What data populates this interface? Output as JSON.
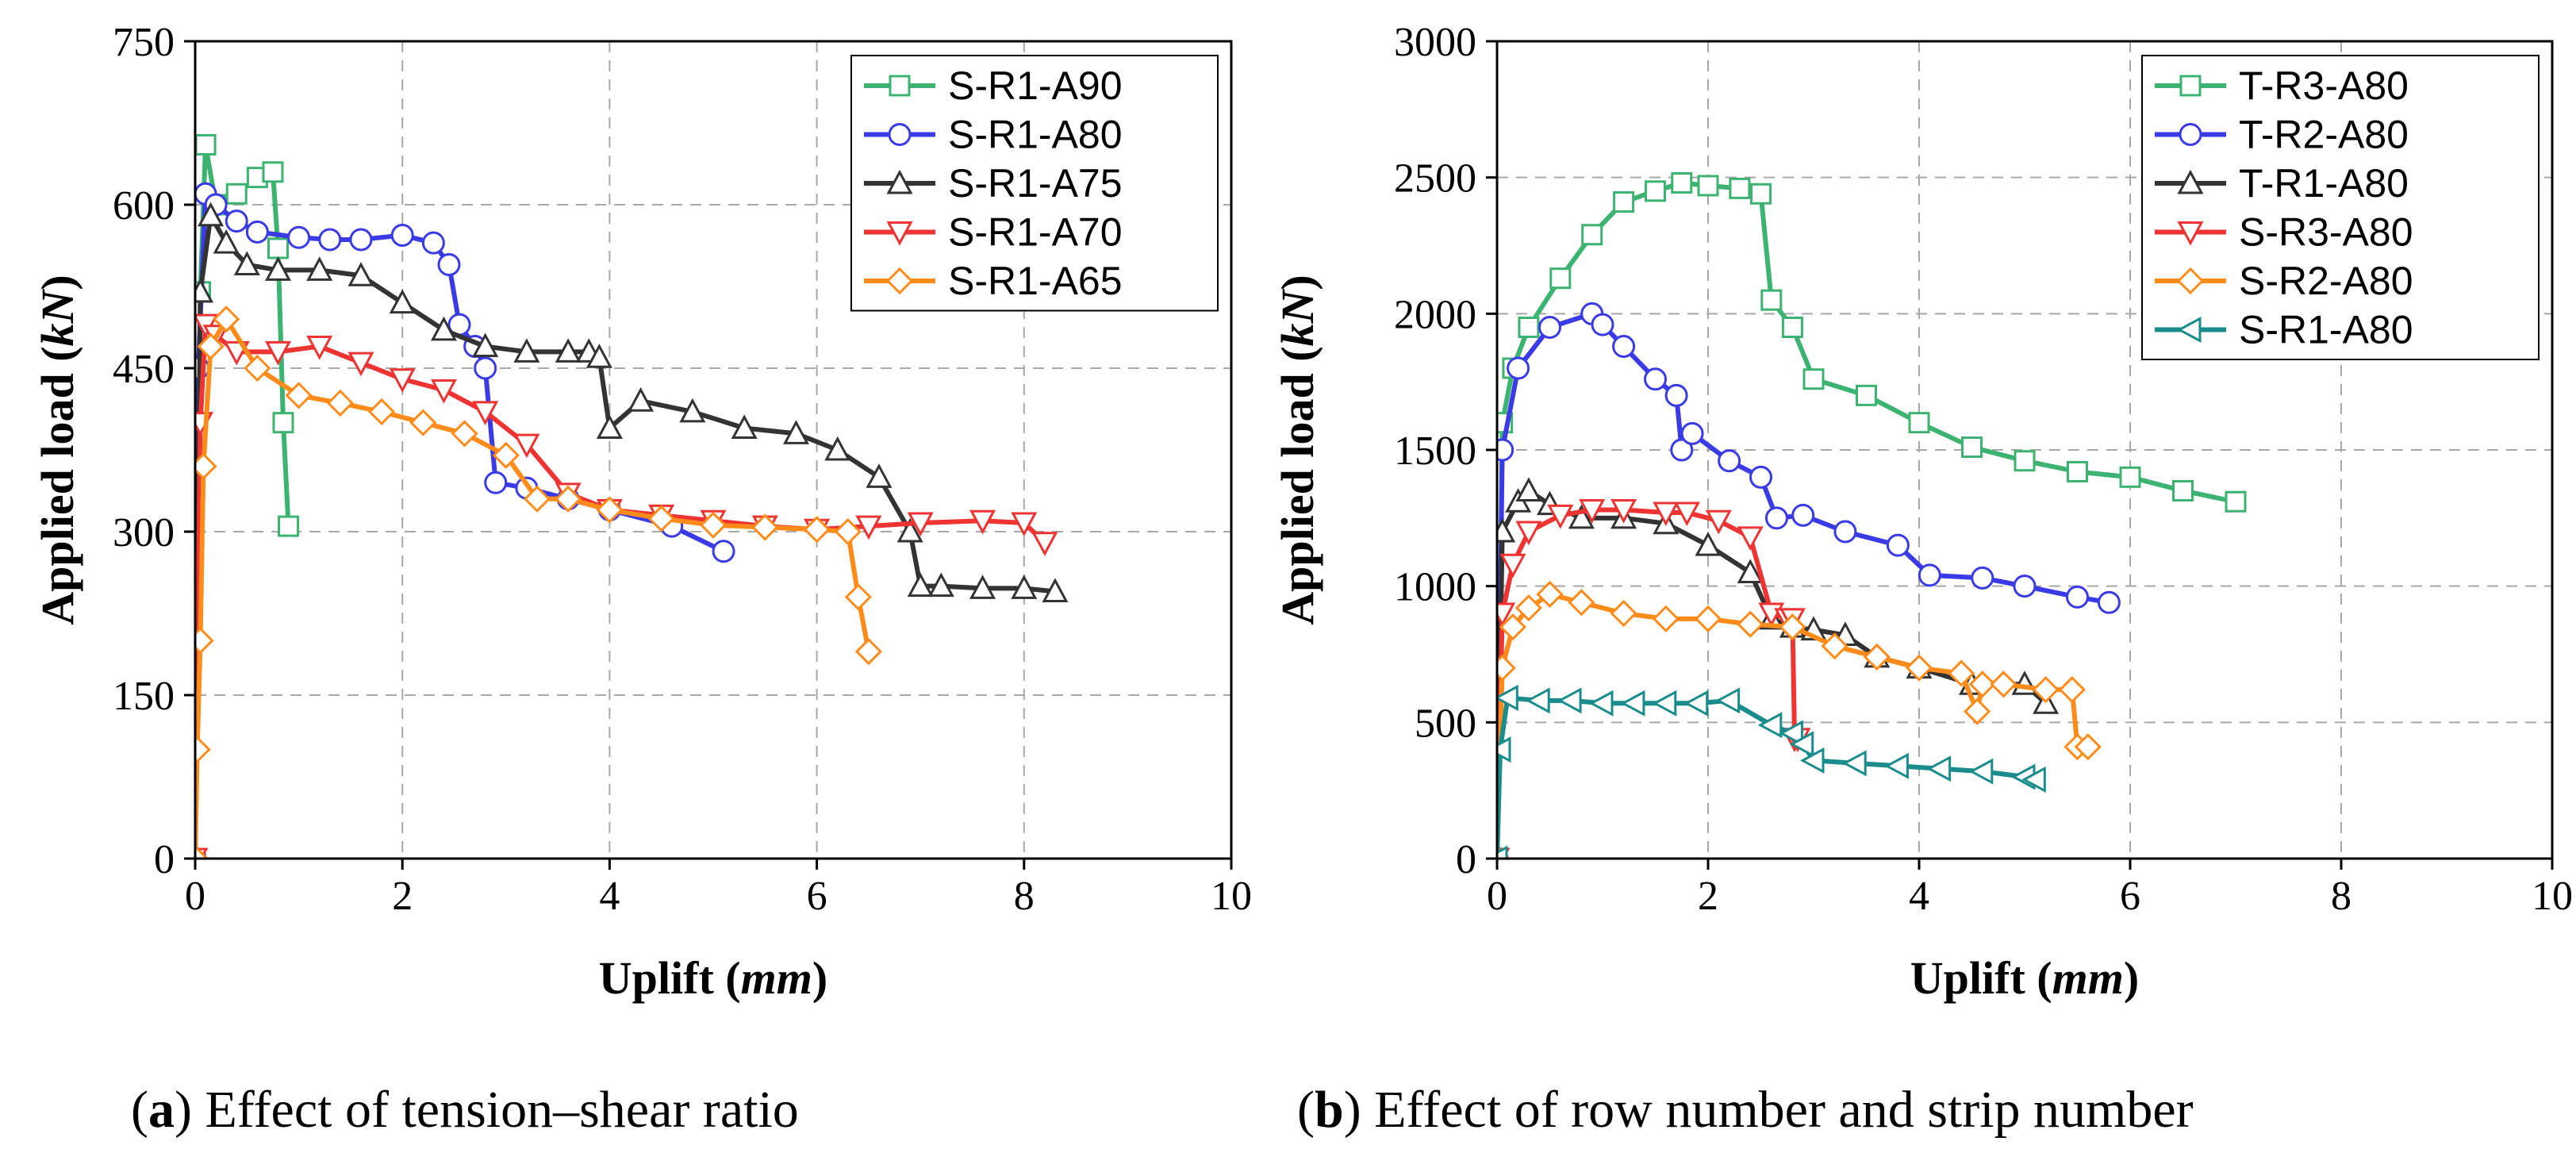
{
  "chart_data": [
    {
      "type": "line",
      "caption_letter": "a",
      "caption_text": "Effect of tension–shear ratio",
      "xlabel": "Uplift",
      "xlabel_unit": "mm",
      "ylabel": "Applied load",
      "ylabel_unit": "kN",
      "xlim": [
        0,
        10
      ],
      "ylim": [
        0,
        750
      ],
      "xticks": [
        0,
        2,
        4,
        6,
        8,
        10
      ],
      "yticks": [
        0,
        150,
        300,
        450,
        600,
        750
      ],
      "grid": true,
      "legend_position": "top-right",
      "series": [
        {
          "name": "S-R1-A90",
          "color": "#3cb371",
          "marker": "square",
          "x": [
            0,
            0.05,
            0.1,
            0.2,
            0.4,
            0.6,
            0.75,
            0.8,
            0.85,
            0.9
          ],
          "y": [
            0,
            520,
            655,
            600,
            610,
            625,
            630,
            560,
            400,
            305
          ]
        },
        {
          "name": "S-R1-A80",
          "color": "#3a3ae6",
          "marker": "circle",
          "x": [
            0,
            0.03,
            0.1,
            0.2,
            0.4,
            0.6,
            1.0,
            1.3,
            1.6,
            2.0,
            2.3,
            2.45,
            2.55,
            2.7,
            2.8,
            2.9,
            3.2,
            3.6,
            4.0,
            4.6,
            5.1
          ],
          "y": [
            0,
            450,
            610,
            600,
            585,
            575,
            570,
            568,
            568,
            572,
            565,
            545,
            490,
            470,
            450,
            345,
            340,
            330,
            320,
            305,
            282
          ]
        },
        {
          "name": "S-R1-A75",
          "color": "#333333",
          "marker": "triangle-up",
          "x": [
            0,
            0.05,
            0.15,
            0.3,
            0.5,
            0.8,
            1.2,
            1.6,
            2.0,
            2.4,
            2.8,
            3.2,
            3.6,
            3.8,
            3.9,
            4.0,
            4.3,
            4.8,
            5.3,
            5.8,
            6.2,
            6.6,
            6.9,
            7.0,
            7.2,
            7.6,
            8.0,
            8.3
          ],
          "y": [
            0,
            520,
            590,
            565,
            545,
            540,
            540,
            535,
            510,
            485,
            470,
            465,
            465,
            465,
            460,
            395,
            420,
            410,
            395,
            390,
            375,
            350,
            300,
            250,
            250,
            248,
            248,
            245
          ]
        },
        {
          "name": "S-R1-A70",
          "color": "#ee3333",
          "marker": "triangle-down",
          "x": [
            0,
            0.05,
            0.1,
            0.2,
            0.4,
            0.8,
            1.2,
            1.6,
            2.0,
            2.4,
            2.8,
            3.2,
            3.6,
            4.0,
            4.5,
            5.0,
            5.5,
            6.0,
            6.5,
            7.0,
            7.6,
            8.0,
            8.2
          ],
          "y": [
            0,
            400,
            490,
            480,
            465,
            465,
            470,
            455,
            440,
            430,
            410,
            380,
            335,
            320,
            315,
            310,
            305,
            302,
            305,
            308,
            310,
            308,
            290
          ]
        },
        {
          "name": "S-R1-A65",
          "color": "#ff8c1a",
          "marker": "diamond",
          "x": [
            0,
            0.02,
            0.05,
            0.08,
            0.15,
            0.3,
            0.6,
            1.0,
            1.4,
            1.8,
            2.2,
            2.6,
            3.0,
            3.3,
            3.6,
            4.0,
            4.5,
            5.0,
            5.5,
            6.0,
            6.3,
            6.4,
            6.5
          ],
          "y": [
            0,
            100,
            200,
            360,
            470,
            495,
            450,
            425,
            418,
            410,
            400,
            390,
            370,
            330,
            330,
            320,
            312,
            306,
            304,
            302,
            300,
            240,
            190
          ]
        }
      ]
    },
    {
      "type": "line",
      "caption_letter": "b",
      "caption_text": "Effect of row number and strip number",
      "xlabel": "Uplift",
      "xlabel_unit": "mm",
      "ylabel": "Applied load",
      "ylabel_unit": "kN",
      "xlim": [
        0,
        10
      ],
      "ylim": [
        0,
        3000
      ],
      "xticks": [
        0,
        2,
        4,
        6,
        8,
        10
      ],
      "yticks": [
        0,
        500,
        1000,
        1500,
        2000,
        2500,
        3000
      ],
      "grid": true,
      "legend_position": "top-right",
      "series": [
        {
          "name": "T-R3-A80",
          "color": "#3cb371",
          "marker": "square",
          "x": [
            0,
            0.05,
            0.15,
            0.3,
            0.6,
            0.9,
            1.2,
            1.5,
            1.75,
            2.0,
            2.3,
            2.5,
            2.6,
            2.8,
            3.0,
            3.5,
            4.0,
            4.5,
            5.0,
            5.5,
            6.0,
            6.5,
            7.0
          ],
          "y": [
            0,
            1600,
            1800,
            1950,
            2130,
            2290,
            2410,
            2450,
            2480,
            2470,
            2460,
            2440,
            2050,
            1950,
            1760,
            1700,
            1600,
            1510,
            1460,
            1420,
            1400,
            1350,
            1310
          ]
        },
        {
          "name": "T-R2-A80",
          "color": "#3a3ae6",
          "marker": "circle",
          "x": [
            0,
            0.05,
            0.2,
            0.5,
            0.9,
            1.0,
            1.2,
            1.5,
            1.7,
            1.75,
            1.85,
            2.2,
            2.5,
            2.65,
            2.9,
            3.3,
            3.8,
            4.1,
            4.6,
            5.0,
            5.5,
            5.8
          ],
          "y": [
            0,
            1500,
            1800,
            1950,
            2000,
            1960,
            1880,
            1760,
            1700,
            1500,
            1560,
            1460,
            1400,
            1250,
            1260,
            1200,
            1150,
            1040,
            1030,
            1000,
            960,
            940
          ]
        },
        {
          "name": "T-R1-A80",
          "color": "#333333",
          "marker": "triangle-up",
          "x": [
            0,
            0.05,
            0.2,
            0.3,
            0.5,
            0.8,
            1.2,
            1.6,
            2.0,
            2.4,
            2.6,
            2.8,
            3.0,
            3.3,
            3.6,
            4.0,
            4.5,
            5.0,
            5.2
          ],
          "y": [
            0,
            1200,
            1310,
            1350,
            1300,
            1250,
            1250,
            1230,
            1150,
            1050,
            880,
            850,
            840,
            820,
            740,
            700,
            640,
            640,
            570
          ]
        },
        {
          "name": "S-R3-A80",
          "color": "#ee3333",
          "marker": "triangle-down",
          "x": [
            0,
            0.05,
            0.15,
            0.3,
            0.6,
            0.9,
            1.2,
            1.6,
            1.8,
            2.1,
            2.4,
            2.6,
            2.75,
            2.8,
            2.82,
            2.85
          ],
          "y": [
            0,
            900,
            1080,
            1200,
            1260,
            1280,
            1280,
            1270,
            1270,
            1240,
            1180,
            900,
            880,
            880,
            440,
            440
          ]
        },
        {
          "name": "S-R2-A80",
          "color": "#ff8c1a",
          "marker": "diamond",
          "x": [
            0,
            0.05,
            0.15,
            0.3,
            0.5,
            0.8,
            1.2,
            1.6,
            2.0,
            2.4,
            2.8,
            3.2,
            3.6,
            4.0,
            4.4,
            4.55,
            4.6,
            4.8,
            5.2,
            5.45,
            5.5,
            5.6
          ],
          "y": [
            0,
            700,
            850,
            920,
            970,
            940,
            900,
            880,
            880,
            860,
            850,
            780,
            740,
            700,
            680,
            540,
            640,
            640,
            620,
            620,
            410,
            410
          ]
        },
        {
          "name": "S-R1-A80",
          "color": "#1a8c8c",
          "marker": "triangle-left",
          "x": [
            0,
            0.03,
            0.1,
            0.4,
            0.7,
            1.0,
            1.3,
            1.6,
            1.9,
            2.2,
            2.6,
            2.8,
            2.9,
            3.0,
            3.4,
            3.8,
            4.2,
            4.6,
            5.0,
            5.1
          ],
          "y": [
            0,
            400,
            590,
            580,
            580,
            570,
            570,
            570,
            570,
            580,
            490,
            460,
            420,
            360,
            350,
            340,
            330,
            320,
            300,
            290
          ]
        }
      ]
    }
  ]
}
